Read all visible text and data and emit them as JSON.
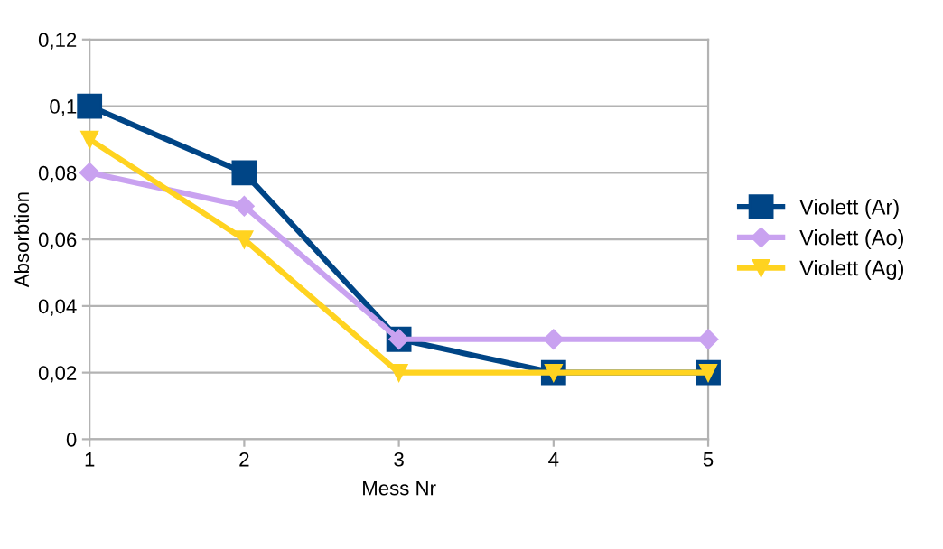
{
  "chart_data": {
    "type": "line",
    "xlabel": "Mess Nr",
    "ylabel": "Absorbtion",
    "x": [
      1,
      2,
      3,
      4,
      5
    ],
    "xlim": [
      1,
      5
    ],
    "xticks": [
      1,
      2,
      3,
      4,
      5
    ],
    "ylim": [
      0,
      0.12
    ],
    "yticks": [
      {
        "value": 0,
        "label": "0"
      },
      {
        "value": 0.02,
        "label": "0,02"
      },
      {
        "value": 0.04,
        "label": "0,04"
      },
      {
        "value": 0.06,
        "label": "0,06"
      },
      {
        "value": 0.08,
        "label": "0,08"
      },
      {
        "value": 0.1,
        "label": "0,1"
      },
      {
        "value": 0.12,
        "label": "0,12"
      }
    ],
    "grid": "y",
    "legend": "right",
    "series": [
      {
        "name": "Violett (Ar)",
        "color": "#004586",
        "marker": "square",
        "values": [
          0.1,
          0.08,
          0.03,
          0.02,
          0.02
        ]
      },
      {
        "name": "Violett (Ao)",
        "color": "#c9a2f0",
        "marker": "diamond",
        "values": [
          0.08,
          0.07,
          0.03,
          0.03,
          0.03
        ]
      },
      {
        "name": "Violett (Ag)",
        "color": "#ffd320",
        "marker": "triangle",
        "values": [
          0.09,
          0.06,
          0.02,
          0.02,
          0.02
        ]
      }
    ]
  }
}
